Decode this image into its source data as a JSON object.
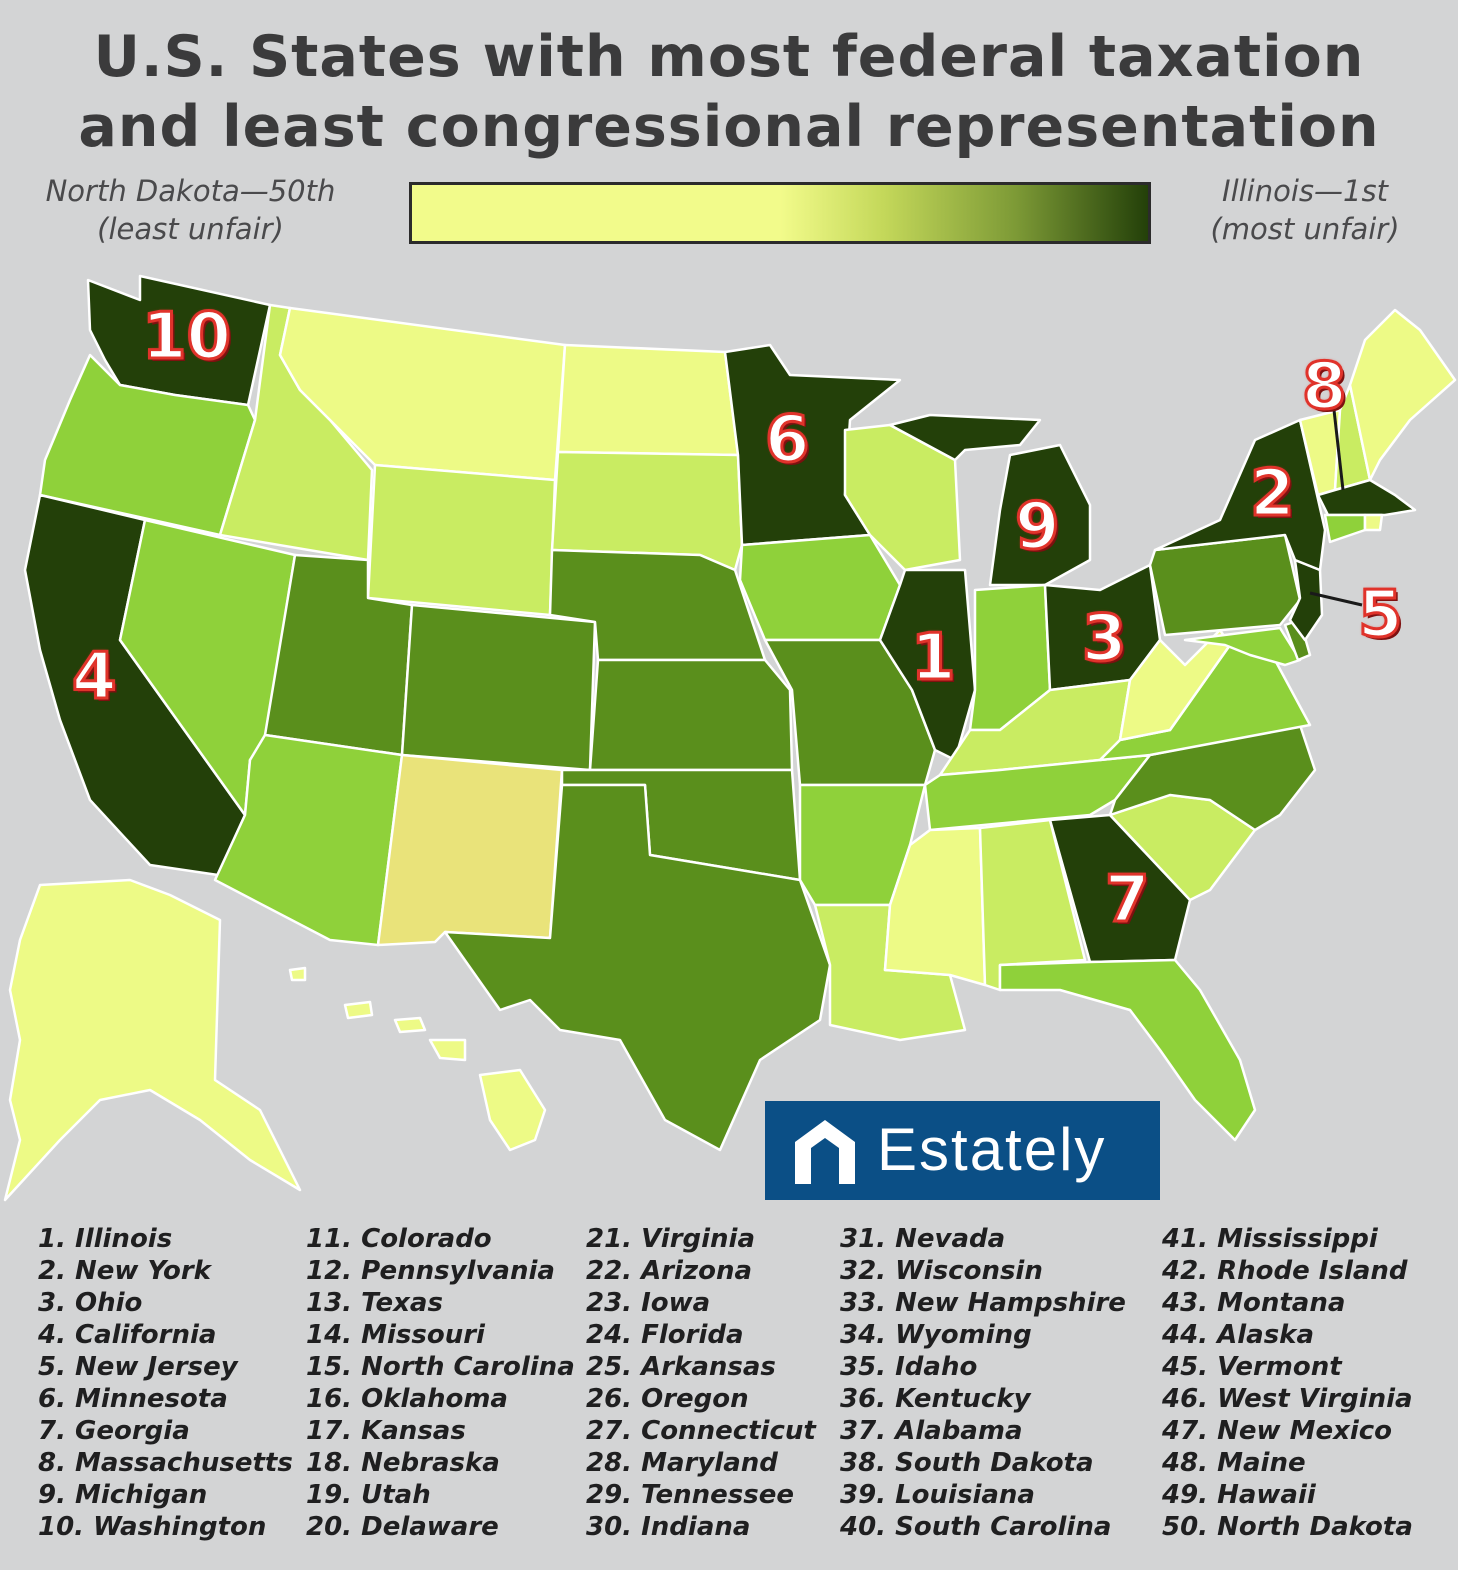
{
  "title": {
    "line1": "U.S. States with most federal taxation",
    "line2": "and least congressional representation"
  },
  "legend": {
    "low_label_1": "North Dakota—50th",
    "low_label_2": "(least unfair)",
    "high_label_1": "Illinois—1st",
    "high_label_2": "(most unfair)",
    "low_color": "#f2fb8b",
    "high_color": "#234009"
  },
  "map_labels": [
    {
      "state": "Illinois",
      "rank": "1"
    },
    {
      "state": "New York",
      "rank": "2"
    },
    {
      "state": "Ohio",
      "rank": "3"
    },
    {
      "state": "California",
      "rank": "4"
    },
    {
      "state": "New Jersey",
      "rank": "5"
    },
    {
      "state": "Minnesota",
      "rank": "6"
    },
    {
      "state": "Georgia",
      "rank": "7"
    },
    {
      "state": "Massachusetts",
      "rank": "8"
    },
    {
      "state": "Michigan",
      "rank": "9"
    },
    {
      "state": "Washington",
      "rank": "10"
    }
  ],
  "colors": {
    "tier1": "#234009",
    "tier2": "#5a8f1c",
    "tier3": "#8fd13a",
    "tier4": "#c9ec62",
    "tier5": "#edfa86",
    "new_mexico": "#e9e37a",
    "background": "#d3d4d5"
  },
  "logo": {
    "text": "Estately",
    "color": "#0b4f86"
  },
  "rankings": [
    [
      "1. Illinois",
      "2. New York",
      "3. Ohio",
      "4. California",
      "5. New Jersey",
      "6. Minnesota",
      "7. Georgia",
      "8. Massachusetts",
      "9. Michigan",
      "10. Washington"
    ],
    [
      "11. Colorado",
      "12. Pennsylvania",
      "13. Texas",
      "14. Missouri",
      "15. North Carolina",
      "16. Oklahoma",
      "17. Kansas",
      "18. Nebraska",
      "19. Utah",
      "20. Delaware"
    ],
    [
      "21. Virginia",
      "22. Arizona",
      "23. Iowa",
      "24. Florida",
      "25. Arkansas",
      "26. Oregon",
      "27. Connecticut",
      "28. Maryland",
      "29. Tennessee",
      "30. Indiana"
    ],
    [
      "31. Nevada",
      "32. Wisconsin",
      "33. New Hampshire",
      "34. Wyoming",
      "35. Idaho",
      "36. Kentucky",
      "37. Alabama",
      "38. South Dakota",
      "39. Louisiana",
      "40. South Carolina"
    ],
    [
      "41. Mississippi",
      "42. Rhode Island",
      "43. Montana",
      "44. Alaska",
      "45. Vermont",
      "46. West Virginia",
      "47. New Mexico",
      "48. Maine",
      "49. Hawaii",
      "50. North Dakota"
    ]
  ]
}
